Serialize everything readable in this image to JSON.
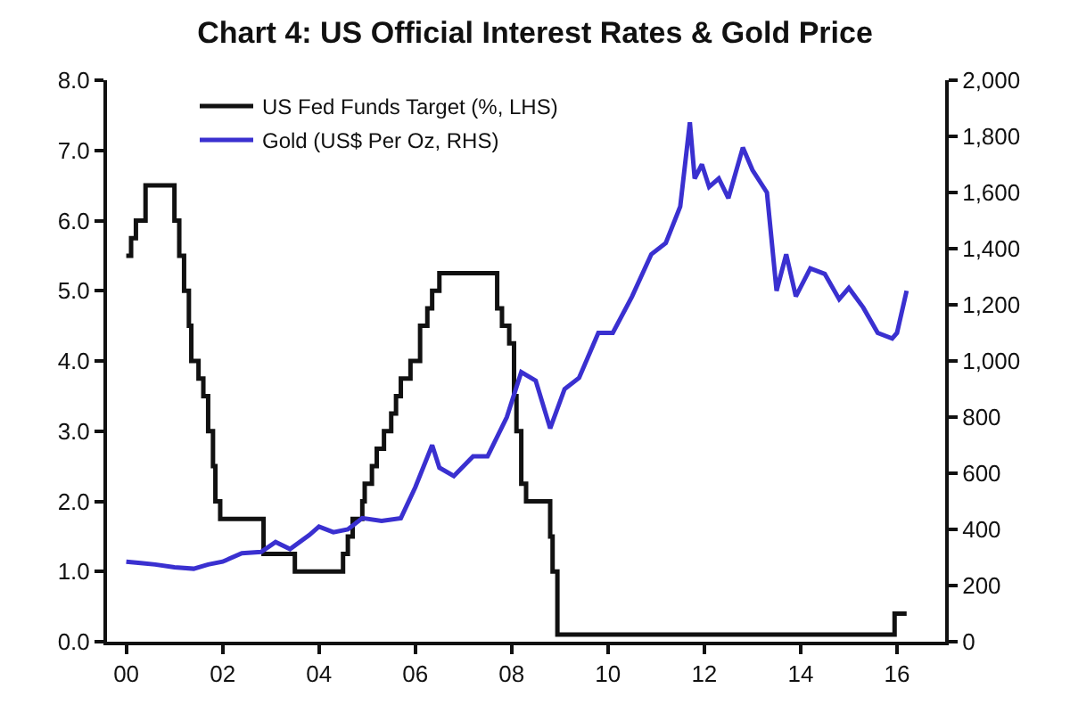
{
  "chart_data": {
    "type": "line",
    "title": "Chart 4: US Official Interest Rates & Gold Price",
    "series": [
      {
        "name": "US Fed Funds Target (%, LHS)",
        "color": "#111111",
        "type": "step",
        "x": [
          2000.0,
          2000.1,
          2000.2,
          2000.4,
          2001.0,
          2001.1,
          2001.2,
          2001.3,
          2001.35,
          2001.5,
          2001.6,
          2001.7,
          2001.8,
          2001.85,
          2001.95,
          2002.85,
          2003.5,
          2004.5,
          2004.6,
          2004.7,
          2004.9,
          2004.95,
          2005.1,
          2005.2,
          2005.35,
          2005.5,
          2005.6,
          2005.7,
          2005.9,
          2006.1,
          2006.25,
          2006.35,
          2006.5,
          2007.7,
          2007.8,
          2007.95,
          2008.05,
          2008.1,
          2008.2,
          2008.3,
          2008.8,
          2008.85,
          2008.95,
          2015.95,
          2016.2
        ],
        "values": [
          5.5,
          5.75,
          6.0,
          6.5,
          6.0,
          5.5,
          5.0,
          4.5,
          4.0,
          3.75,
          3.5,
          3.0,
          2.5,
          2.0,
          1.75,
          1.25,
          1.0,
          1.25,
          1.5,
          1.75,
          2.0,
          2.25,
          2.5,
          2.75,
          3.0,
          3.25,
          3.5,
          3.75,
          4.0,
          4.5,
          4.75,
          5.0,
          5.25,
          4.75,
          4.5,
          4.25,
          3.5,
          3.0,
          2.25,
          2.0,
          1.5,
          1.0,
          0.1,
          0.4,
          0.4
        ]
      },
      {
        "name": "Gold (US$ Per Oz, RHS)",
        "color": "#3a30d0",
        "axis": "y2",
        "x": [
          2000.0,
          2000.3,
          2000.6,
          2001.0,
          2001.4,
          2001.7,
          2002.0,
          2002.4,
          2002.8,
          2003.1,
          2003.4,
          2003.8,
          2004.0,
          2004.3,
          2004.6,
          2004.9,
          2005.3,
          2005.7,
          2006.0,
          2006.35,
          2006.5,
          2006.8,
          2007.2,
          2007.5,
          2007.9,
          2008.2,
          2008.5,
          2008.8,
          2009.1,
          2009.4,
          2009.8,
          2010.1,
          2010.5,
          2010.9,
          2011.2,
          2011.5,
          2011.7,
          2011.8,
          2011.95,
          2012.1,
          2012.3,
          2012.5,
          2012.8,
          2013.0,
          2013.3,
          2013.5,
          2013.7,
          2013.9,
          2014.2,
          2014.5,
          2014.8,
          2015.0,
          2015.3,
          2015.6,
          2015.9,
          2016.0,
          2016.2
        ],
        "values": [
          285,
          280,
          275,
          265,
          260,
          275,
          285,
          315,
          320,
          355,
          330,
          380,
          410,
          390,
          400,
          440,
          430,
          440,
          550,
          700,
          620,
          590,
          660,
          660,
          800,
          960,
          930,
          760,
          900,
          940,
          1100,
          1100,
          1230,
          1380,
          1420,
          1550,
          1850,
          1650,
          1700,
          1620,
          1650,
          1580,
          1760,
          1680,
          1600,
          1250,
          1380,
          1230,
          1330,
          1310,
          1220,
          1260,
          1190,
          1100,
          1080,
          1100,
          1250
        ]
      }
    ],
    "xlim": [
      1999.6,
      2017.0
    ],
    "xticks": [
      {
        "value": 2000,
        "label": "00"
      },
      {
        "value": 2002,
        "label": "02"
      },
      {
        "value": 2004,
        "label": "04"
      },
      {
        "value": 2006,
        "label": "06"
      },
      {
        "value": 2008,
        "label": "08"
      },
      {
        "value": 2010,
        "label": "10"
      },
      {
        "value": 2012,
        "label": "12"
      },
      {
        "value": 2014,
        "label": "14"
      },
      {
        "value": 2016,
        "label": "16"
      }
    ],
    "ylim": [
      0,
      8
    ],
    "yticks": [
      {
        "value": 0,
        "label": "0.0"
      },
      {
        "value": 1,
        "label": "1.0"
      },
      {
        "value": 2,
        "label": "2.0"
      },
      {
        "value": 3,
        "label": "3.0"
      },
      {
        "value": 4,
        "label": "4.0"
      },
      {
        "value": 5,
        "label": "5.0"
      },
      {
        "value": 6,
        "label": "6.0"
      },
      {
        "value": 7,
        "label": "7.0"
      },
      {
        "value": 8,
        "label": "8.0"
      }
    ],
    "y2lim": [
      0,
      2000
    ],
    "y2ticks": [
      {
        "value": 0,
        "label": "0"
      },
      {
        "value": 200,
        "label": "200"
      },
      {
        "value": 400,
        "label": "400"
      },
      {
        "value": 600,
        "label": "600"
      },
      {
        "value": 800,
        "label": "800"
      },
      {
        "value": 1000,
        "label": "1,000"
      },
      {
        "value": 1200,
        "label": "1,200"
      },
      {
        "value": 1400,
        "label": "1,400"
      },
      {
        "value": 1600,
        "label": "1,600"
      },
      {
        "value": 1800,
        "label": "1,800"
      },
      {
        "value": 2000,
        "label": "2,000"
      }
    ],
    "legend": "top left",
    "marker": "none",
    "line_style": "solid"
  }
}
